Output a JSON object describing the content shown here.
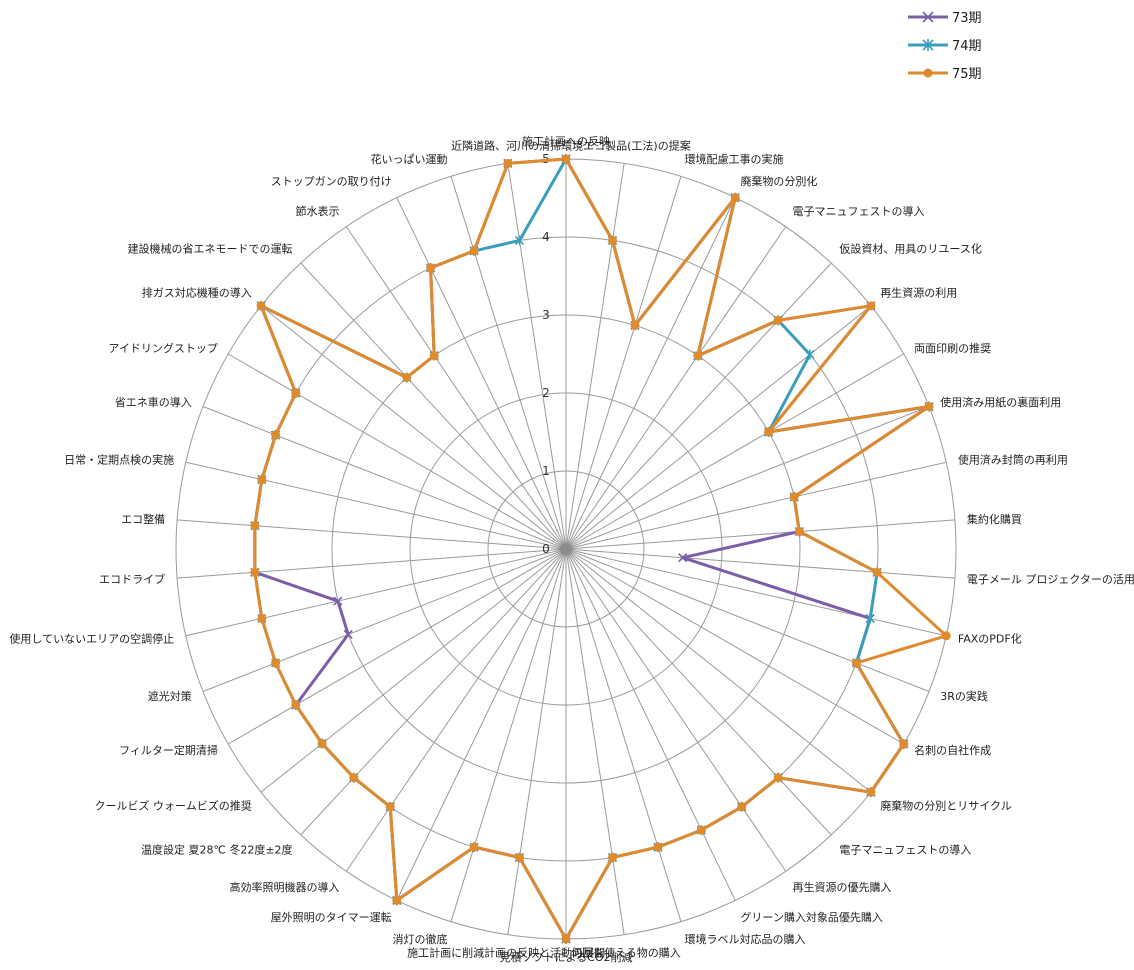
{
  "chart_data": {
    "type": "radar",
    "title": "",
    "r_range": [
      0,
      5
    ],
    "r_ticks": [
      "0",
      "1",
      "2",
      "3",
      "4",
      "5"
    ],
    "legend_position": "top-right",
    "categories": [
      "施工計画への反映",
      "環境エコ製品(工法)の提案",
      "環境配慮工事の実施",
      "廃棄物の分別化",
      "電子マニュフェストの導入",
      "仮設資材、用具のリユース化",
      "再生資源の利用",
      "両面印刷の推奨",
      "使用済み用紙の裏面利用",
      "使用済み封筒の再利用",
      "集約化購買",
      "電子メール プロジェクターの活用",
      "FAXのPDF化",
      "3Rの実践",
      "名刺の自社作成",
      "廃棄物の分別とリサイクル",
      "電子マニュフェストの導入",
      "再生資源の優先購入",
      "グリーン購入対象品優先購入",
      "環境ラベル対応品の購入",
      "何回も使える物の購入",
      "見積ソフトによるCO2削減",
      "施工計画に削減計画の反映と活動の展開",
      "消灯の徹底",
      "屋外照明のタイマー運転",
      "高効率照明機器の導入",
      "温度設定 夏28℃ 冬22度±2度",
      "クールビズ ウォームビズの推奨",
      "フィルター定期清掃",
      "遮光対策",
      "使用していないエリアの空調停止",
      "エコドライブ",
      "エコ整備",
      "日常・定期点検の実施",
      "省エネ車の導入",
      "アイドリングストップ",
      "排ガス対応機種の導入",
      "建設機械の省エネモードでの運転",
      "節水表示",
      "ストップガンの取り付け",
      "花いっぱい運動",
      "近隣道路、河川の清掃"
    ],
    "series": [
      {
        "name": "73期",
        "color": "#7b5ea7",
        "marker": "x",
        "values": [
          5,
          4,
          3,
          5,
          3,
          4,
          5,
          3,
          5,
          3,
          3,
          1.5,
          4,
          4,
          5,
          5,
          4,
          4,
          4,
          4,
          4,
          5,
          4,
          4,
          5,
          4,
          4,
          4,
          4,
          3,
          3,
          4,
          4,
          4,
          4,
          4,
          5,
          3,
          3,
          4,
          4,
          5
        ]
      },
      {
        "name": "74期",
        "color": "#3a9dbb",
        "marker": "*",
        "values": [
          5,
          4,
          3,
          5,
          3,
          4,
          4,
          3,
          5,
          3,
          3,
          4,
          4,
          4,
          5,
          5,
          4,
          4,
          4,
          4,
          4,
          5,
          4,
          4,
          5,
          4,
          4,
          4,
          4,
          4,
          4,
          4,
          4,
          4,
          4,
          4,
          5,
          3,
          3,
          4,
          4,
          4
        ]
      },
      {
        "name": "75期",
        "color": "#e08a2e",
        "marker": "o",
        "values": [
          5,
          4,
          3,
          5,
          3,
          4,
          5,
          3,
          5,
          3,
          3,
          4,
          5,
          4,
          5,
          5,
          4,
          4,
          4,
          4,
          4,
          5,
          4,
          4,
          5,
          4,
          4,
          4,
          4,
          4,
          4,
          4,
          4,
          4,
          4,
          4,
          5,
          3,
          3,
          4,
          4,
          5
        ]
      }
    ]
  }
}
